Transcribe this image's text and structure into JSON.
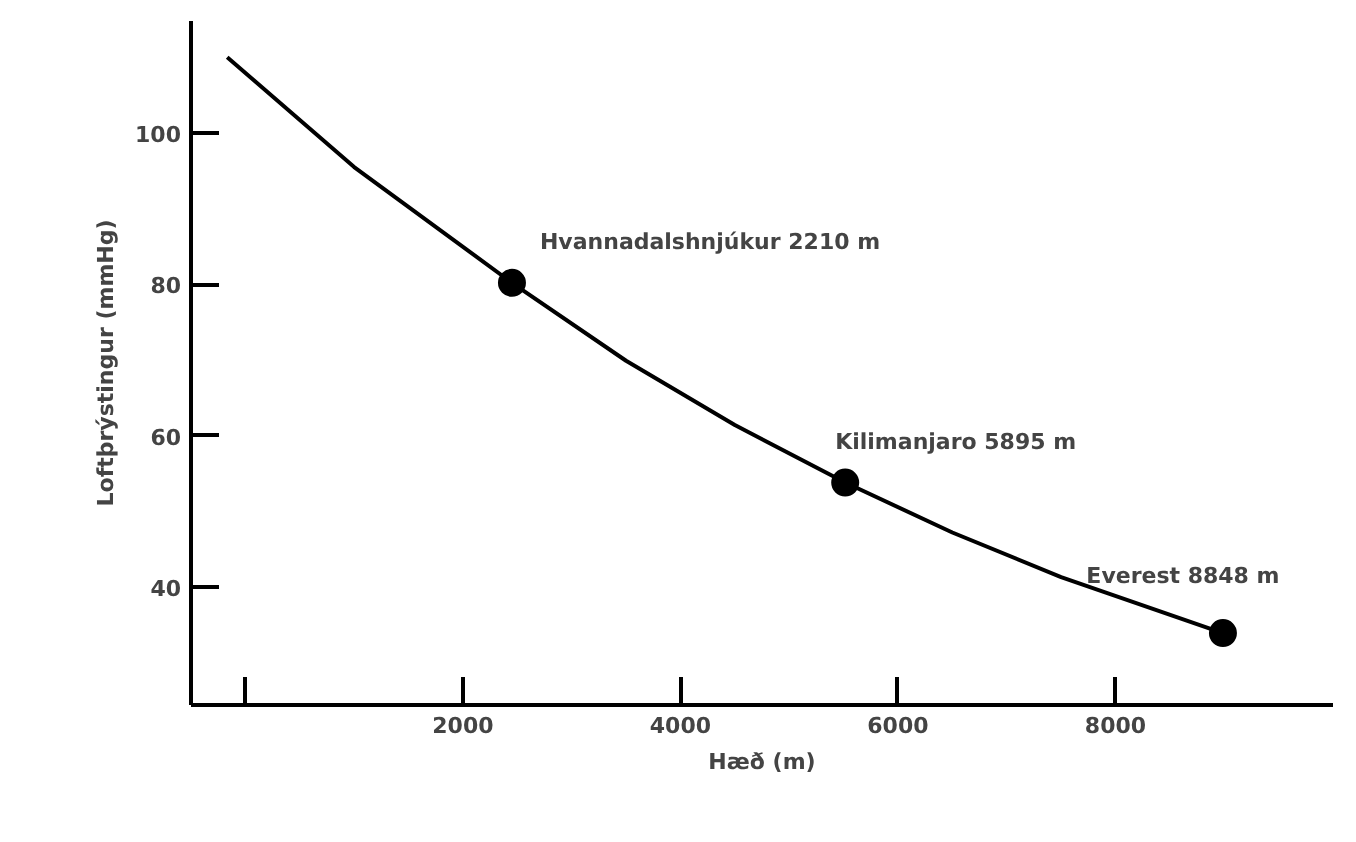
{
  "chart_data": {
    "type": "line",
    "xlabel": "Hæð (m)",
    "ylabel": "Loftþrýstingur (mmHg)",
    "xlim": [
      -500,
      10000
    ],
    "ylim": [
      24.4,
      114.8
    ],
    "xticks": [
      {
        "value": 0,
        "label": null
      },
      2000,
      4000,
      6000,
      8000
    ],
    "yticks": [
      40,
      60,
      80,
      100
    ],
    "grid": false,
    "series": [
      {
        "color": "#000000",
        "marker": "none",
        "x": [
          -167,
          1000,
          2451,
          3500,
          4500,
          5515,
          6500,
          7500,
          8988
        ],
        "values": [
          110,
          95.5,
          80.2,
          69.9,
          61.4,
          53.8,
          47.2,
          41.3,
          33.9
        ]
      },
      {
        "type": "scatter",
        "color": "#000000",
        "marker": "circle",
        "x": [
          2451,
          5515,
          8988
        ],
        "values": [
          80.2,
          53.8,
          33.9
        ]
      }
    ],
    "annotations": [
      {
        "text": "Hvannadalshnjúkur 2210 m",
        "x": 2451,
        "y": 80.2
      },
      {
        "text": "Kilimanjaro 5895 m",
        "x": 5515,
        "y": 53.8
      },
      {
        "text": "Everest 8848 m",
        "x": 8988,
        "y": 33.9
      }
    ]
  }
}
